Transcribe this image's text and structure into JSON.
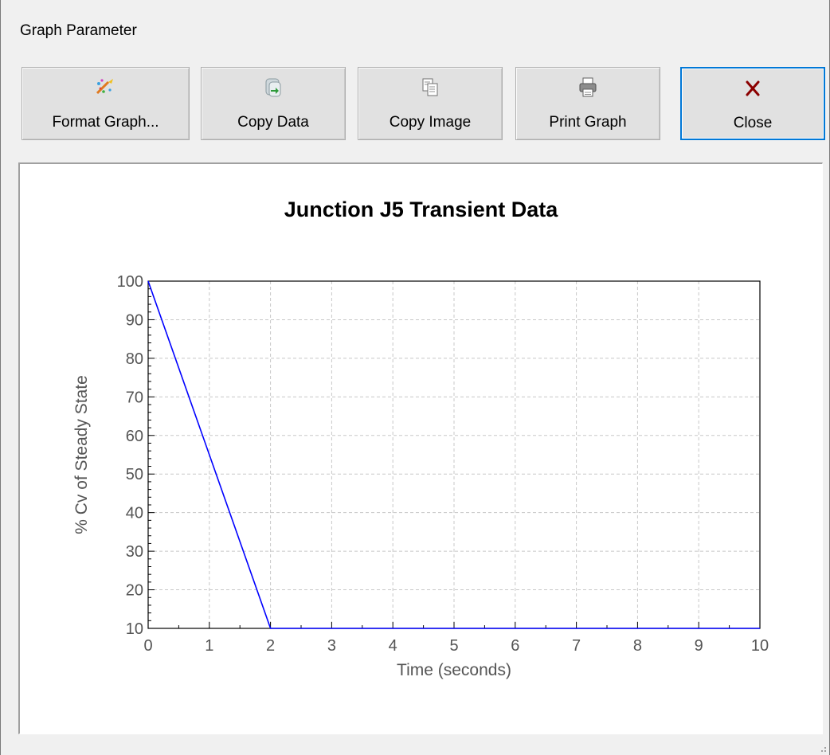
{
  "window": {
    "title": "Graph Parameter"
  },
  "toolbar": {
    "buttons": [
      {
        "id": "format",
        "label": "Format Graph...",
        "icon": "format-graph-icon"
      },
      {
        "id": "copy_data",
        "label": "Copy Data",
        "icon": "copy-data-icon"
      },
      {
        "id": "copy_image",
        "label": "Copy Image",
        "icon": "copy-image-icon"
      },
      {
        "id": "print",
        "label": "Print Graph",
        "icon": "printer-icon"
      },
      {
        "id": "close",
        "label": "Close",
        "icon": "close-icon"
      }
    ]
  },
  "colors": {
    "series": "#0000ff",
    "close_icon": "#8b0000",
    "default_button_border": "#0078d7"
  },
  "chart_data": {
    "type": "line",
    "title": "Junction J5 Transient Data",
    "xlabel": "Time (seconds)",
    "ylabel": "% Cv of Steady State",
    "xlim": [
      0,
      10
    ],
    "ylim": [
      10,
      100
    ],
    "xticks": [
      "0",
      "1",
      "2",
      "3",
      "4",
      "5",
      "6",
      "7",
      "8",
      "9",
      "10"
    ],
    "yticks": [
      "10",
      "20",
      "30",
      "40",
      "50",
      "60",
      "70",
      "80",
      "90",
      "100"
    ],
    "grid": true,
    "series": [
      {
        "x": [
          0,
          2,
          10
        ],
        "y": [
          100,
          10,
          10
        ]
      }
    ]
  }
}
